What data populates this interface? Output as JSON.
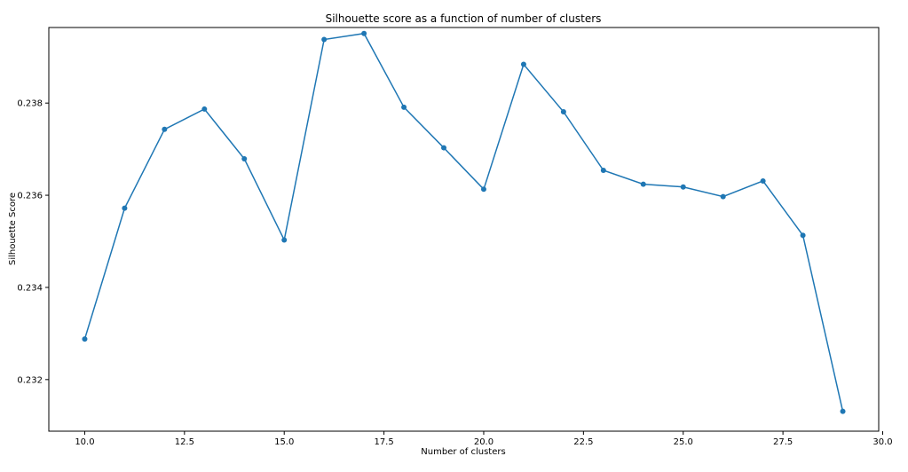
{
  "chart_data": {
    "type": "line",
    "title": "Silhouette score as a function of number of clusters",
    "xlabel": "Number of clusters",
    "ylabel": "Silhouette Score",
    "xlim": [
      9.1,
      29.9
    ],
    "ylim": [
      0.23088,
      0.23964
    ],
    "x_ticks": [
      10.0,
      12.5,
      15.0,
      17.5,
      20.0,
      22.5,
      25.0,
      27.5,
      30.0
    ],
    "x_tick_labels": [
      "10.0",
      "12.5",
      "15.0",
      "17.5",
      "20.0",
      "22.5",
      "25.0",
      "27.5",
      "30.0"
    ],
    "y_ticks": [
      0.232,
      0.234,
      0.236,
      0.238
    ],
    "y_tick_labels": [
      "0.232",
      "0.234",
      "0.236",
      "0.238"
    ],
    "grid": false,
    "color": "#1f77b4",
    "x": [
      10,
      11,
      12,
      13,
      14,
      15,
      16,
      17,
      18,
      19,
      20,
      21,
      22,
      23,
      24,
      25,
      26,
      27,
      28,
      29
    ],
    "series": [
      {
        "values": [
          0.23288,
          0.23572,
          0.23743,
          0.23787,
          0.23679,
          0.23503,
          0.23938,
          0.23951,
          0.23791,
          0.23703,
          0.23613,
          0.23884,
          0.23781,
          0.23654,
          0.23624,
          0.23618,
          0.23597,
          0.23631,
          0.23513,
          0.23131
        ]
      }
    ]
  }
}
